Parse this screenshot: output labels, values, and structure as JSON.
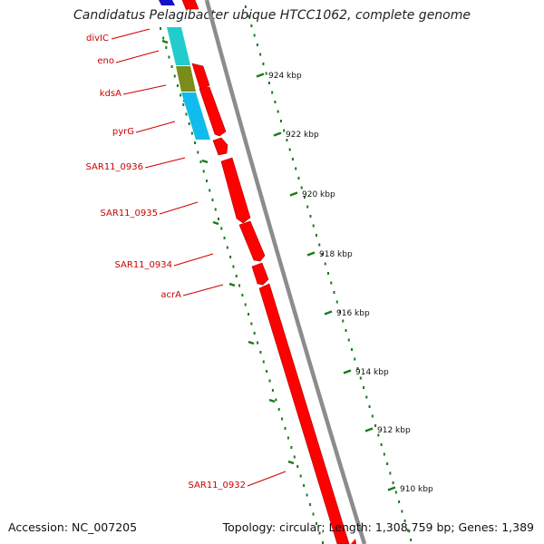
{
  "title": "Candidatus Pelagibacter ubique HTCC1062, complete genome",
  "footer": {
    "accession": "Accession: NC_007205",
    "summary": "Topology: circular; Length: 1,308,759 bp; Genes: 1,389"
  },
  "colors": {
    "gene_forward": "#ff0000",
    "gene_label": "#cc0000",
    "backbone": "#8c8c8c",
    "ruler": "#1a7a1a",
    "cog_teal": "#22cccc",
    "cog_olive": "#7a8c1a",
    "cog_sky": "#11bbee",
    "cog_blue": "#1111cc"
  },
  "gene_labels": [
    "divIC",
    "eno",
    "kdsA",
    "pyrG",
    "SAR11_0936",
    "SAR11_0935",
    "SAR11_0934",
    "acrA",
    "SAR11_0932"
  ],
  "ruler_labels": [
    "924 kbp",
    "922 kbp",
    "920 kbp",
    "918 kbp",
    "916 kbp",
    "914 kbp",
    "912 kbp",
    "910 kbp"
  ]
}
